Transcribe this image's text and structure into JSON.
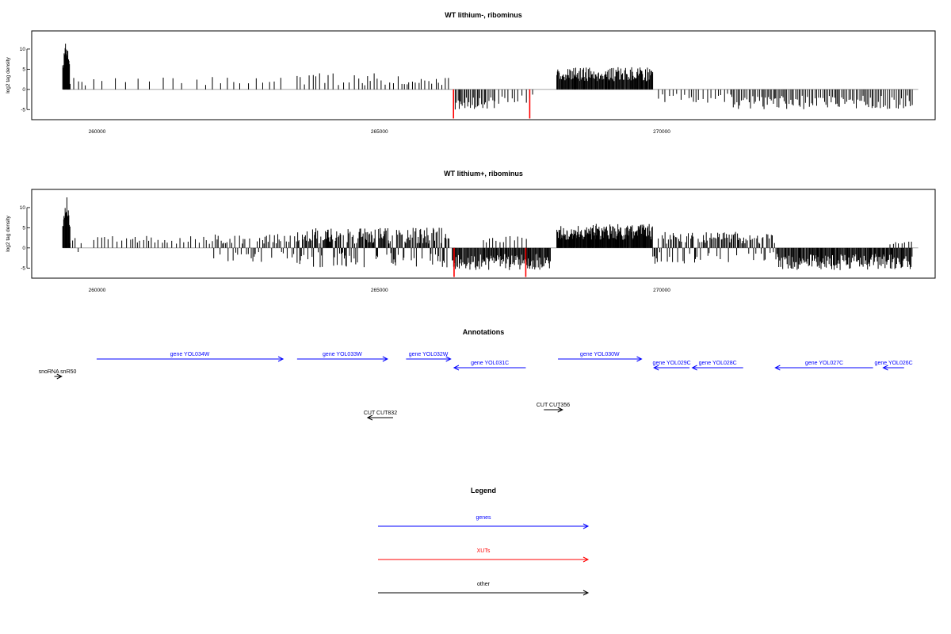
{
  "chart_data": [
    {
      "type": "bar",
      "title": "WT lithium-, ribominus",
      "xlabel": "",
      "ylabel": "log2 tag density",
      "xlim": [
        258800,
        274800
      ],
      "ylim": [
        -7.5,
        14.5
      ],
      "xticks": [
        260000,
        265000,
        270000
      ],
      "yticks": [
        10,
        5,
        0,
        -5
      ],
      "seed": 7,
      "highlight_x": [
        266270,
        267620
      ],
      "highlight_y": -7.2,
      "highlight_color": "#ff0000",
      "bar_color": "#000000",
      "segments": [
        {
          "from": 259350,
          "to": 259470,
          "step": 8,
          "mode": "peak",
          "lo": 3.0,
          "hi": 13.3
        },
        {
          "from": 259480,
          "to": 259800,
          "step": 80,
          "mode": "pos",
          "lo": 1.0,
          "hi": 3.0
        },
        {
          "from": 259900,
          "to": 262000,
          "step": 200,
          "mode": "pos",
          "lo": 1.0,
          "hi": 3.0
        },
        {
          "from": 262000,
          "to": 263300,
          "step": 120,
          "mode": "pos",
          "lo": 1.0,
          "hi": 3.5
        },
        {
          "from": 263500,
          "to": 265500,
          "step": 70,
          "mode": "pos",
          "lo": 1.0,
          "hi": 4.0
        },
        {
          "from": 265400,
          "to": 266200,
          "step": 60,
          "mode": "pos",
          "lo": 1.0,
          "hi": 3.0
        },
        {
          "from": 266300,
          "to": 267000,
          "step": 25,
          "mode": "neg",
          "lo": 2.0,
          "hi": 5.0
        },
        {
          "from": 267000,
          "to": 267700,
          "step": 60,
          "mode": "neg",
          "lo": 1.0,
          "hi": 4.0
        },
        {
          "from": 268100,
          "to": 269800,
          "step": 12,
          "mode": "pos",
          "lo": 2.0,
          "hi": 5.5
        },
        {
          "from": 269900,
          "to": 271200,
          "step": 60,
          "mode": "neg",
          "lo": 1.0,
          "hi": 3.5
        },
        {
          "from": 271200,
          "to": 274400,
          "step": 30,
          "mode": "neg",
          "lo": 1.5,
          "hi": 5.0
        }
      ]
    },
    {
      "type": "bar",
      "title": "WT lithium+, ribominus",
      "xlabel": "",
      "ylabel": "log2 tag density",
      "xlim": [
        258800,
        274800
      ],
      "ylim": [
        -7.5,
        14.5
      ],
      "xticks": [
        260000,
        265000,
        270000
      ],
      "yticks": [
        10,
        5,
        0,
        -5
      ],
      "seed": 13,
      "highlight_x": [
        266280,
        267550
      ],
      "highlight_y": -7.2,
      "highlight_color": "#ff0000",
      "bar_color": "#000000",
      "segments": [
        {
          "from": 259350,
          "to": 259480,
          "step": 8,
          "mode": "peak",
          "lo": 3.0,
          "hi": 13.6
        },
        {
          "from": 259480,
          "to": 259700,
          "step": 40,
          "mode": "mixed",
          "lo": 1.0,
          "hi": 2.5
        },
        {
          "from": 259900,
          "to": 262000,
          "step": 60,
          "mode": "pos",
          "lo": 1.0,
          "hi": 3.0
        },
        {
          "from": 262000,
          "to": 263500,
          "step": 25,
          "mode": "mixed",
          "lo": 1.0,
          "hi": 3.5
        },
        {
          "from": 263500,
          "to": 266200,
          "step": 14,
          "mode": "mixed",
          "lo": 1.0,
          "hi": 5.0
        },
        {
          "from": 266250,
          "to": 268000,
          "step": 14,
          "mode": "neg",
          "lo": 1.5,
          "hi": 5.5
        },
        {
          "from": 266800,
          "to": 267600,
          "step": 60,
          "mode": "pos",
          "lo": 1.0,
          "hi": 3.0
        },
        {
          "from": 268100,
          "to": 269800,
          "step": 10,
          "mode": "pos",
          "lo": 2.0,
          "hi": 6.0
        },
        {
          "from": 269800,
          "to": 272000,
          "step": 20,
          "mode": "mixed",
          "lo": 1.0,
          "hi": 4.0
        },
        {
          "from": 272000,
          "to": 274400,
          "step": 14,
          "mode": "neg",
          "lo": 1.5,
          "hi": 5.5
        },
        {
          "from": 274000,
          "to": 274400,
          "step": 60,
          "mode": "pos",
          "lo": 0.5,
          "hi": 2.0
        }
      ]
    }
  ],
  "annotations": {
    "title": "Annotations",
    "features": [
      {
        "label": "gene YOL034W",
        "start": 259950,
        "end": 263250,
        "strand": "+",
        "row": 0,
        "color": "#0000ff"
      },
      {
        "label": "gene YOL033W",
        "start": 263500,
        "end": 265100,
        "strand": "+",
        "row": 0,
        "color": "#0000ff"
      },
      {
        "label": "gene YOL032W",
        "start": 265430,
        "end": 266220,
        "strand": "+",
        "row": 0,
        "color": "#0000ff"
      },
      {
        "label": "gene YOL031C",
        "start": 266280,
        "end": 267550,
        "strand": "-",
        "row": 1,
        "color": "#0000ff"
      },
      {
        "label": "gene YOL030W",
        "start": 268120,
        "end": 269600,
        "strand": "+",
        "row": 0,
        "color": "#0000ff"
      },
      {
        "label": "gene YOL029C",
        "start": 269820,
        "end": 270450,
        "strand": "-",
        "row": 1,
        "color": "#0000ff"
      },
      {
        "label": "gene YOL028C",
        "start": 270500,
        "end": 271400,
        "strand": "-",
        "row": 1,
        "color": "#0000ff"
      },
      {
        "label": "gene YOL027C",
        "start": 271970,
        "end": 273700,
        "strand": "-",
        "row": 1,
        "color": "#0000ff"
      },
      {
        "label": "gene YOL026C",
        "start": 273880,
        "end": 274250,
        "strand": "-",
        "row": 1,
        "color": "#0000ff"
      },
      {
        "label": "snoRNA snR50",
        "start": 259200,
        "end": 259330,
        "strand": "+",
        "row": 2,
        "color": "#000000"
      },
      {
        "label": "CUT CUT832",
        "start": 264750,
        "end": 265200,
        "strand": "-",
        "row": 3,
        "color": "#000000"
      },
      {
        "label": "CUT CUT356",
        "start": 267870,
        "end": 268200,
        "strand": "+",
        "row": 4,
        "color": "#000000"
      }
    ]
  },
  "legend": {
    "title": "Legend",
    "items": [
      {
        "label": "genes",
        "color": "#0000ff"
      },
      {
        "label": "XUTs",
        "color": "#ff0000"
      },
      {
        "label": "other",
        "color": "#000000"
      }
    ]
  }
}
